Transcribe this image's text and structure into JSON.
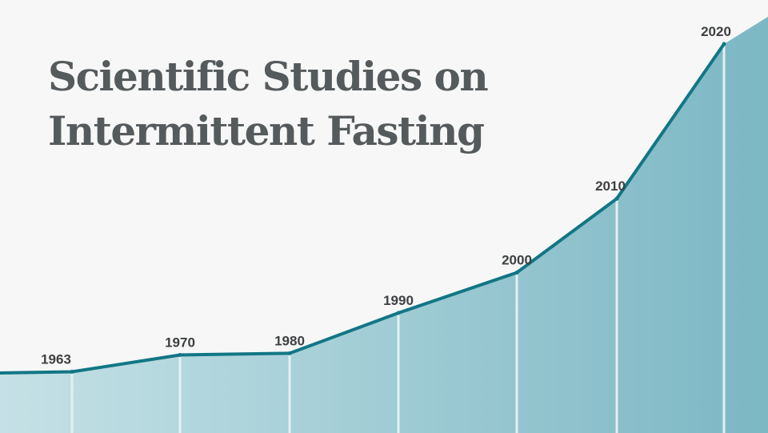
{
  "chart_data": {
    "type": "area",
    "title_lines": [
      "Scientific Studies on",
      "Intermittent Fasting"
    ],
    "x": [
      "1963",
      "1970",
      "1980",
      "1990",
      "2000",
      "2010",
      "2020"
    ],
    "y_relative": [
      0.05,
      0.15,
      0.16,
      0.4,
      0.64,
      1.08,
      2.0
    ],
    "xlabel": "",
    "ylabel": "",
    "grid": false,
    "legend": "none",
    "colors": {
      "line": "#127685",
      "fill_light": "#c5e1e6",
      "fill_dark": "#7cb7c4",
      "divider": "#e3f0f2",
      "label": "#3d3f41"
    }
  }
}
